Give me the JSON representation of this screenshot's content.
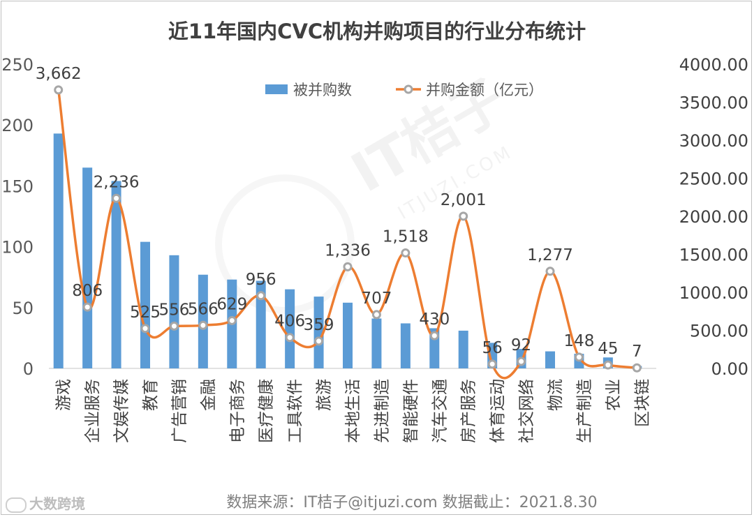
{
  "chart_data": {
    "type": "bar",
    "title": "近11年国内CVC机构并购项目的行业分布统计",
    "categories": [
      "游戏",
      "企业服务",
      "文娱传媒",
      "教育",
      "广告营销",
      "金融",
      "电子商务",
      "医疗健康",
      "工具软件",
      "旅游",
      "本地生活",
      "先进制造",
      "智能硬件",
      "汽车交通",
      "房产服务",
      "体育运动",
      "社交网络",
      "物流",
      "生产制造",
      "农业",
      "区块链"
    ],
    "series": [
      {
        "name": "被并购数",
        "type": "bar",
        "axis": "left",
        "color": "#5b9bd5",
        "values": [
          193,
          165,
          154,
          104,
          93,
          77,
          73,
          72,
          65,
          59,
          54,
          41,
          37,
          33,
          31,
          21,
          16,
          14,
          12,
          9,
          2
        ]
      },
      {
        "name": "并购金额（亿元）",
        "type": "line",
        "axis": "right",
        "color": "#ed7d31",
        "values": [
          3662,
          806,
          2236,
          525,
          556,
          566,
          629,
          956,
          406,
          359,
          1336,
          707,
          1518,
          430,
          2001,
          56,
          92,
          1277,
          148,
          45,
          7
        ],
        "labels": [
          "3,662",
          "806",
          "2,236",
          "525",
          "556",
          "566",
          "629",
          "956",
          "406",
          "359",
          "1,336",
          "707",
          "1,518",
          "430",
          "2,001",
          "56",
          "92",
          "1,277",
          "148",
          "45",
          "7"
        ]
      }
    ],
    "y_left": {
      "range": [
        0,
        250
      ],
      "ticks": [
        "0",
        "50",
        "100",
        "150",
        "200",
        "250"
      ]
    },
    "y_right": {
      "range": [
        0,
        4000
      ],
      "ticks": [
        "0.00",
        "500.00",
        "1000.00",
        "1500.00",
        "2000.00",
        "2500.00",
        "3000.00",
        "3500.00",
        "4000.00"
      ]
    },
    "legend_position": "top-center",
    "grid": false
  },
  "footer": {
    "source": "数据来源：IT桔子@itjuzi.com  数据截止：2021.8.30"
  },
  "watermark": {
    "main": "IT桔子",
    "sub": "ITJUZI.COM"
  },
  "brand": {
    "name": "大数跨境"
  }
}
